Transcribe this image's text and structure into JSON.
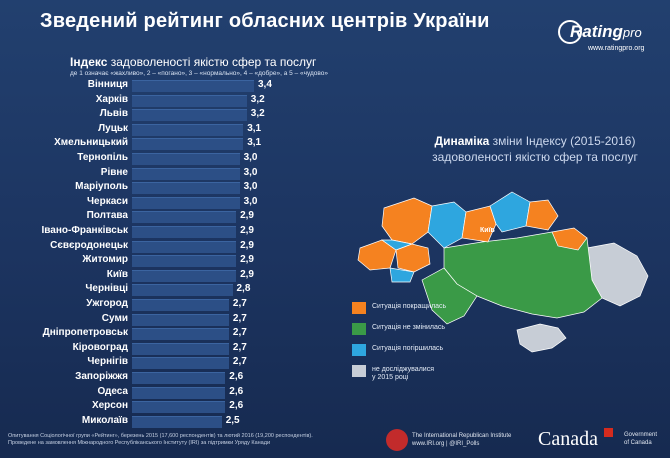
{
  "header": {
    "title": "Зведений рейтинг обласних центрів України",
    "logo_text": "Rating",
    "logo_pro": "pro",
    "logo_url": "www.ratingpro.org"
  },
  "chart_data": {
    "type": "bar",
    "orientation": "horizontal",
    "title_bold": "Індекс",
    "title_rest": " задоволеності якістю сфер та послуг",
    "subtitle": "де 1 означає «жахливо», 2 – «погано», 3 – «нормально», 4 – «добре», а 5 – «чудово»",
    "categories": [
      "Вінниця",
      "Харків",
      "Львів",
      "Луцьк",
      "Хмельницький",
      "Тернопіль",
      "Рівне",
      "Маріуполь",
      "Черкаси",
      "Полтава",
      "Івано-Франківськ",
      "Сєвєродонецьк",
      "Житомир",
      "Київ",
      "Чернівці",
      "Ужгород",
      "Суми",
      "Дніпропетровськ",
      "Кіровоград",
      "Чернігів",
      "Запоріжжя",
      "Одеса",
      "Херсон",
      "Миколаїв"
    ],
    "values": [
      3.4,
      3.2,
      3.2,
      3.1,
      3.1,
      3.0,
      3.0,
      3.0,
      3.0,
      2.9,
      2.9,
      2.9,
      2.9,
      2.9,
      2.8,
      2.7,
      2.7,
      2.7,
      2.7,
      2.7,
      2.6,
      2.6,
      2.6,
      2.5
    ],
    "value_labels": [
      "3,4",
      "3,2",
      "3,2",
      "3,1",
      "3,1",
      "3,0",
      "3,0",
      "3,0",
      "3,0",
      "2,9",
      "2,9",
      "2,9",
      "2,9",
      "2,9",
      "2,8",
      "2,7",
      "2,7",
      "2,7",
      "2,7",
      "2,7",
      "2,6",
      "2,6",
      "2,6",
      "2,5"
    ],
    "xlim": [
      0,
      3.4
    ],
    "grid": false,
    "bar_color": "#2c4f86"
  },
  "dynamics": {
    "title_accent": "Динаміка",
    "title_rest_1": " зміни Індексу (2015-2016)",
    "title_rest_2": "задоволеності якістю сфер та послуг"
  },
  "map": {
    "colors": {
      "improved": "#f58220",
      "unchanged": "#3a9a47",
      "worsened": "#2ea6df",
      "not_studied": "#c7cdd6"
    },
    "kyiv_label": "Київ"
  },
  "legend": [
    {
      "key": "improved",
      "label": "Ситуація покращилась",
      "color": "#f58220"
    },
    {
      "key": "unchanged",
      "label": "Ситуація не змінилась",
      "color": "#3a9a47"
    },
    {
      "key": "worsened",
      "label": "Ситуація погіршилась",
      "color": "#2ea6df"
    },
    {
      "key": "not_studied",
      "label": "не досліджувалися",
      "label2": "у 2015 році",
      "color": "#c7cdd6"
    }
  ],
  "footer": {
    "line1": "Опитування Соціологічної групи «Рейтинг», березень 2015 (17,600 респондентів) та лютий 2016 (19,200 респондентів).",
    "line2": "Проведене на замовлення Міжнародного Республіканського Інституту (IRI) за підтримки Уряду Канади",
    "iri_line1": "The International Republican Institute",
    "iri_line2": "www.IRI.org | @IRI_Polls",
    "canada": "Canada",
    "gov_line1": "Government",
    "gov_line2": "of Canada"
  }
}
